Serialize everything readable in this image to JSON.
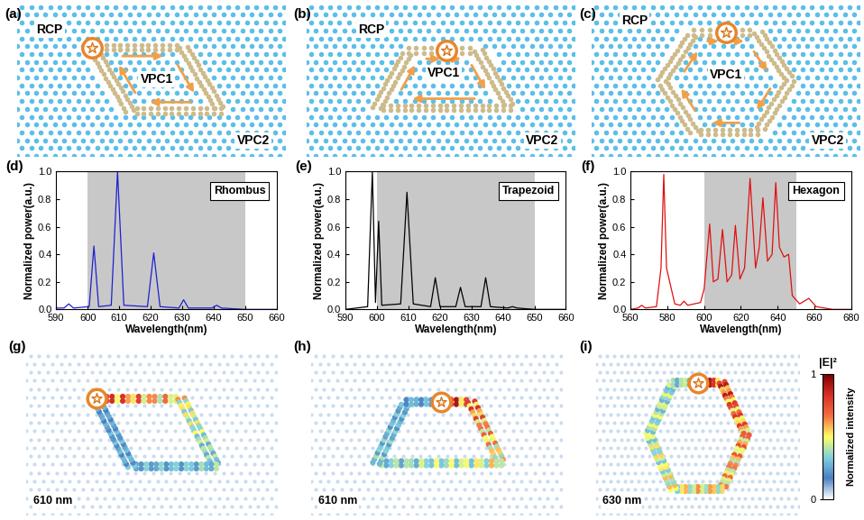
{
  "diagrams": [
    {
      "panel": "(a)",
      "source": "RCP",
      "inner": "VPC1",
      "outer": "VPC2"
    },
    {
      "panel": "(b)",
      "source": "RCP",
      "inner": "VPC1",
      "outer": "VPC2"
    },
    {
      "panel": "(c)",
      "source": "RCP",
      "inner": "VPC1",
      "outer": "VPC2"
    }
  ],
  "chart_data": [
    {
      "type": "line",
      "panel": "(d)",
      "label": "Rhombus",
      "color": "#1f1fd0",
      "xlabel": "Wavelength(nm)",
      "ylabel": "Normalized power(a.u.)",
      "x": [
        590,
        592.5,
        594,
        595.5,
        600.5,
        602,
        603.5,
        607.5,
        609.5,
        611.5,
        619,
        621,
        623,
        629,
        630.5,
        632,
        639.5,
        641,
        642.5,
        650,
        660
      ],
      "values": [
        0.01,
        0.01,
        0.04,
        0.01,
        0.02,
        0.46,
        0.02,
        0.03,
        1.0,
        0.03,
        0.02,
        0.41,
        0.02,
        0.01,
        0.07,
        0.01,
        0.01,
        0.03,
        0.01,
        0.0,
        0.0
      ],
      "shaded_range": [
        600,
        650
      ],
      "xlim": [
        590,
        660
      ],
      "xticks": [
        590,
        600,
        610,
        620,
        630,
        640,
        650,
        660
      ],
      "ylim": [
        0.0,
        1.0
      ],
      "yticks": [
        0.0,
        0.2,
        0.4,
        0.6,
        0.8,
        1.0
      ]
    },
    {
      "type": "line",
      "panel": "(e)",
      "label": "Trapezoid",
      "color": "#000000",
      "xlabel": "Wavelength(nm)",
      "ylabel": "Normalized power(a.u.)",
      "x": [
        590,
        597,
        598.5,
        599.5,
        600.5,
        601.5,
        607.5,
        609.5,
        611.5,
        617,
        618.5,
        620,
        625,
        626.5,
        628,
        633,
        634.5,
        636,
        641.5,
        643,
        644.5,
        650,
        660
      ],
      "values": [
        0.0,
        0.02,
        1.0,
        0.05,
        0.64,
        0.03,
        0.04,
        0.85,
        0.04,
        0.02,
        0.23,
        0.02,
        0.02,
        0.16,
        0.02,
        0.02,
        0.23,
        0.02,
        0.01,
        0.02,
        0.01,
        0.0,
        0.0
      ],
      "shaded_range": [
        600,
        650
      ],
      "xlim": [
        590,
        660
      ],
      "xticks": [
        590,
        600,
        610,
        620,
        630,
        640,
        650,
        660
      ],
      "ylim": [
        0.0,
        1.0
      ],
      "yticks": [
        0.0,
        0.2,
        0.4,
        0.6,
        0.8,
        1.0
      ]
    },
    {
      "type": "line",
      "panel": "(f)",
      "label": "Hexagon",
      "color": "#e01010",
      "xlabel": "Wavelength(nm)",
      "ylabel": "Normalized power(a.u.)",
      "x": [
        560,
        564,
        566,
        568,
        574,
        576.5,
        578,
        579.5,
        584,
        587,
        589,
        591,
        598,
        600,
        603,
        605,
        607.5,
        610,
        612.5,
        615,
        617,
        619.5,
        622,
        625,
        628,
        630,
        632,
        634.5,
        637,
        639,
        641,
        643.5,
        646,
        648,
        652,
        657,
        661,
        670,
        680
      ],
      "values": [
        0.0,
        0.01,
        0.03,
        0.01,
        0.02,
        0.3,
        0.98,
        0.3,
        0.04,
        0.03,
        0.06,
        0.03,
        0.05,
        0.15,
        0.62,
        0.2,
        0.22,
        0.58,
        0.2,
        0.25,
        0.61,
        0.22,
        0.3,
        0.95,
        0.3,
        0.45,
        0.81,
        0.35,
        0.4,
        0.92,
        0.45,
        0.38,
        0.4,
        0.1,
        0.04,
        0.08,
        0.02,
        0.0,
        0.0
      ],
      "shaded_range": [
        600,
        650
      ],
      "xlim": [
        560,
        680
      ],
      "xticks": [
        560,
        580,
        600,
        620,
        640,
        660,
        680
      ],
      "ylim": [
        0.0,
        1.0
      ],
      "yticks": [
        0.0,
        0.2,
        0.4,
        0.6,
        0.8,
        1.0
      ]
    }
  ],
  "field_maps": [
    {
      "panel": "(g)",
      "wavelength": "610 nm"
    },
    {
      "panel": "(h)",
      "wavelength": "610 nm"
    },
    {
      "panel": "(i)",
      "wavelength": "630 nm"
    }
  ],
  "colorbar": {
    "title": "|E|²",
    "label": "Normalized intensity",
    "range": [
      0,
      1
    ],
    "ticks": [
      0,
      1
    ]
  }
}
